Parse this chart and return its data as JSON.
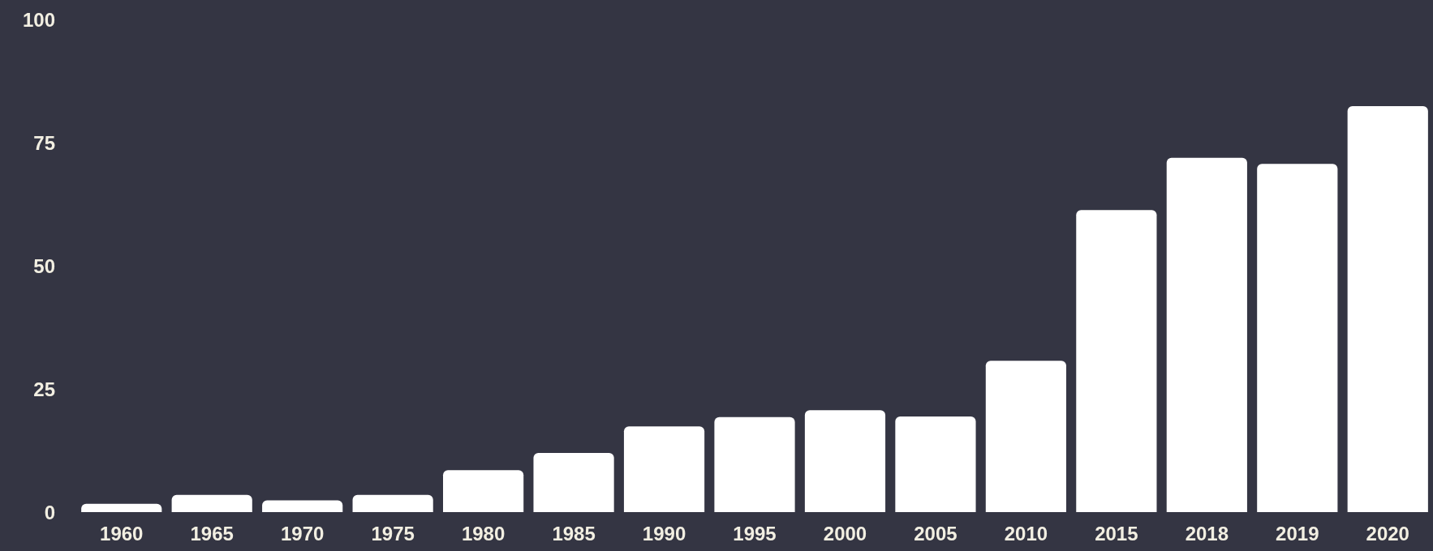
{
  "chart_data": {
    "type": "bar",
    "categories": [
      "1960",
      "1965",
      "1970",
      "1975",
      "1980",
      "1985",
      "1990",
      "1995",
      "2000",
      "2005",
      "2010",
      "2015",
      "2018",
      "2019",
      "2020"
    ],
    "values": [
      1.7,
      3.5,
      2.4,
      3.5,
      8.5,
      12,
      17.4,
      19.3,
      20.7,
      19.4,
      30.7,
      61.3,
      71.9,
      70.7,
      82.4
    ],
    "color": "#ffffff",
    "ylim": [
      0,
      100
    ],
    "yticks": [
      0,
      25,
      50,
      75,
      100
    ]
  }
}
